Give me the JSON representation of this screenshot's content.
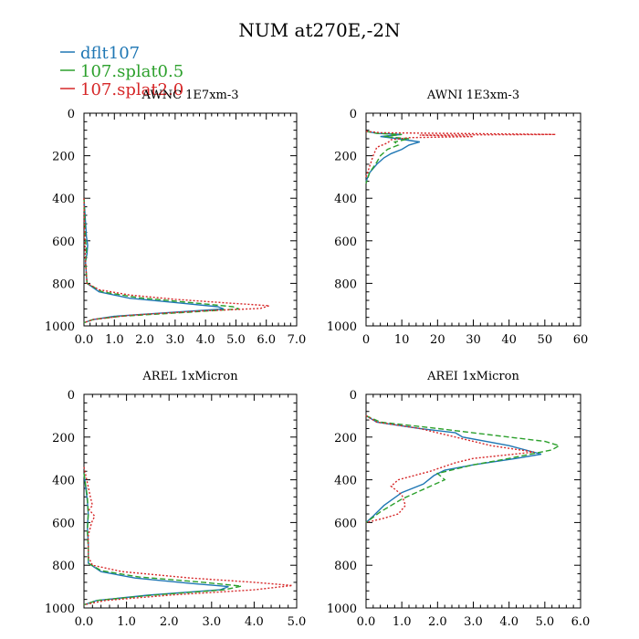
{
  "figure_title": "NUM at270E,-2N",
  "legend": [
    {
      "label": "dflt107",
      "color": "#1f77b4",
      "dash": "solid"
    },
    {
      "label": "107.splat0.5",
      "color": "#2ca02c",
      "dash": "dashed"
    },
    {
      "label": "107.splat2.0",
      "color": "#d62728",
      "dash": "dotted"
    }
  ],
  "chart_data": [
    {
      "type": "line",
      "title": "AWNC  1E7xm-3",
      "xlim": [
        0,
        7
      ],
      "ylim": [
        1000,
        0
      ],
      "xticks": [
        "0.0",
        "1.0",
        "2.0",
        "3.0",
        "4.0",
        "5.0",
        "6.0",
        "7.0"
      ],
      "yticks": [
        "0",
        "200",
        "400",
        "600",
        "800",
        "1000"
      ],
      "series": [
        {
          "name": "dflt107",
          "points": [
            [
              0,
              400
            ],
            [
              0.08,
              580
            ],
            [
              0.12,
              620
            ],
            [
              0.1,
              660
            ],
            [
              0.05,
              700
            ],
            [
              0.1,
              800
            ],
            [
              0.5,
              840
            ],
            [
              1.5,
              870
            ],
            [
              3.0,
              890
            ],
            [
              4.4,
              910
            ],
            [
              4.6,
              920
            ],
            [
              3.0,
              935
            ],
            [
              1.0,
              955
            ],
            [
              0.3,
              970
            ],
            [
              0,
              985
            ]
          ]
        },
        {
          "name": "107.splat0.5",
          "points": [
            [
              0,
              400
            ],
            [
              0.05,
              600
            ],
            [
              0.08,
              640
            ],
            [
              0.05,
              700
            ],
            [
              0.1,
              800
            ],
            [
              0.6,
              840
            ],
            [
              1.8,
              868
            ],
            [
              3.5,
              890
            ],
            [
              4.9,
              910
            ],
            [
              5.1,
              920
            ],
            [
              3.5,
              935
            ],
            [
              1.2,
              955
            ],
            [
              0.3,
              970
            ],
            [
              0,
              985
            ]
          ]
        },
        {
          "name": "107.splat2.0",
          "points": [
            [
              0,
              400
            ],
            [
              0.03,
              600
            ],
            [
              0.05,
              700
            ],
            [
              0.1,
              800
            ],
            [
              0.5,
              830
            ],
            [
              1.5,
              855
            ],
            [
              3.0,
              875
            ],
            [
              4.5,
              890
            ],
            [
              6.1,
              905
            ],
            [
              5.8,
              918
            ],
            [
              3.8,
              930
            ],
            [
              1.5,
              950
            ],
            [
              0.3,
              970
            ],
            [
              0,
              985
            ]
          ]
        }
      ]
    },
    {
      "type": "line",
      "title": "AWNI  1E3xm-3",
      "xlim": [
        0,
        60
      ],
      "ylim": [
        1000,
        0
      ],
      "xticks": [
        "0",
        "10",
        "20",
        "30",
        "40",
        "50",
        "60"
      ],
      "yticks": [
        "0",
        "200",
        "400",
        "600",
        "800",
        "1000"
      ],
      "series": [
        {
          "name": "dflt107",
          "points": [
            [
              0,
              85
            ],
            [
              3,
              95
            ],
            [
              10,
              100
            ],
            [
              4,
              110
            ],
            [
              9,
              120
            ],
            [
              15,
              135
            ],
            [
              12,
              150
            ],
            [
              10,
              170
            ],
            [
              7,
              190
            ],
            [
              5,
              210
            ],
            [
              3,
              240
            ],
            [
              1,
              280
            ],
            [
              0,
              320
            ]
          ]
        },
        {
          "name": "107.splat0.5",
          "points": [
            [
              0,
              85
            ],
            [
              3,
              95
            ],
            [
              10,
              100
            ],
            [
              5,
              110
            ],
            [
              12,
              120
            ],
            [
              8,
              135
            ],
            [
              9,
              150
            ],
            [
              6,
              170
            ],
            [
              4,
              200
            ],
            [
              3,
              230
            ],
            [
              1,
              280
            ],
            [
              0,
              330
            ]
          ]
        },
        {
          "name": "107.splat2.0",
          "points": [
            [
              0,
              85
            ],
            [
              4,
              92
            ],
            [
              53,
              100
            ],
            [
              15,
              103
            ],
            [
              30,
              110
            ],
            [
              12,
              115
            ],
            [
              7,
              125
            ],
            [
              6,
              140
            ],
            [
              3,
              160
            ],
            [
              2,
              200
            ],
            [
              1,
              250
            ],
            [
              0,
              300
            ]
          ]
        }
      ]
    },
    {
      "type": "line",
      "title": "AREL  1xMicron",
      "xlim": [
        0,
        5
      ],
      "ylim": [
        1000,
        0
      ],
      "xticks": [
        "0.0",
        "1.0",
        "2.0",
        "3.0",
        "4.0",
        "5.0"
      ],
      "yticks": [
        "0",
        "200",
        "400",
        "600",
        "800",
        "1000"
      ],
      "series": [
        {
          "name": "dflt107",
          "points": [
            [
              0,
              370
            ],
            [
              0.05,
              450
            ],
            [
              0.08,
              500
            ],
            [
              0.1,
              560
            ],
            [
              0.08,
              620
            ],
            [
              0.1,
              700
            ],
            [
              0.1,
              790
            ],
            [
              0.4,
              830
            ],
            [
              1.2,
              860
            ],
            [
              2.5,
              885
            ],
            [
              3.4,
              900
            ],
            [
              3.2,
              915
            ],
            [
              1.5,
              940
            ],
            [
              0.3,
              965
            ],
            [
              0,
              985
            ]
          ]
        },
        {
          "name": "107.splat0.5",
          "points": [
            [
              0,
              370
            ],
            [
              0.08,
              480
            ],
            [
              0.1,
              560
            ],
            [
              0.08,
              640
            ],
            [
              0.1,
              720
            ],
            [
              0.1,
              790
            ],
            [
              0.4,
              825
            ],
            [
              1.3,
              855
            ],
            [
              2.8,
              880
            ],
            [
              3.7,
              898
            ],
            [
              3.3,
              915
            ],
            [
              1.6,
              940
            ],
            [
              0.3,
              965
            ],
            [
              0,
              985
            ]
          ]
        },
        {
          "name": "107.splat2.0",
          "points": [
            [
              0,
              340
            ],
            [
              0.15,
              480
            ],
            [
              0.2,
              520
            ],
            [
              0.12,
              540
            ],
            [
              0.25,
              570
            ],
            [
              0.18,
              600
            ],
            [
              0.1,
              660
            ],
            [
              0.1,
              760
            ],
            [
              0.2,
              800
            ],
            [
              0.9,
              830
            ],
            [
              2.5,
              860
            ],
            [
              4.0,
              880
            ],
            [
              4.9,
              895
            ],
            [
              4.0,
              915
            ],
            [
              2.0,
              940
            ],
            [
              0.5,
              965
            ],
            [
              0,
              985
            ]
          ]
        }
      ]
    },
    {
      "type": "line",
      "title": "AREI  1xMicron",
      "xlim": [
        0,
        6
      ],
      "ylim": [
        1000,
        0
      ],
      "xticks": [
        "0.0",
        "1.0",
        "2.0",
        "3.0",
        "4.0",
        "5.0",
        "6.0"
      ],
      "yticks": [
        "0",
        "200",
        "400",
        "600",
        "800",
        "1000"
      ],
      "series": [
        {
          "name": "dflt107",
          "points": [
            [
              0,
              100
            ],
            [
              0.3,
              130
            ],
            [
              1.5,
              160
            ],
            [
              2.5,
              180
            ],
            [
              2.7,
              200
            ],
            [
              4.0,
              240
            ],
            [
              4.9,
              280
            ],
            [
              4.2,
              300
            ],
            [
              3.0,
              330
            ],
            [
              2.2,
              355
            ],
            [
              1.9,
              380
            ],
            [
              1.6,
              420
            ],
            [
              1.0,
              460
            ],
            [
              0.5,
              520
            ],
            [
              0.2,
              570
            ],
            [
              0,
              600
            ]
          ]
        },
        {
          "name": "107.splat0.5",
          "points": [
            [
              0,
              100
            ],
            [
              0.4,
              130
            ],
            [
              2.0,
              160
            ],
            [
              3.5,
              190
            ],
            [
              5.0,
              220
            ],
            [
              5.4,
              240
            ],
            [
              5.2,
              260
            ],
            [
              4.0,
              300
            ],
            [
              3.0,
              330
            ],
            [
              2.0,
              370
            ],
            [
              2.2,
              400
            ],
            [
              1.8,
              430
            ],
            [
              1.0,
              490
            ],
            [
              0.4,
              550
            ],
            [
              0,
              600
            ]
          ]
        },
        {
          "name": "107.splat2.0",
          "points": [
            [
              0,
              100
            ],
            [
              0.3,
              130
            ],
            [
              1.5,
              160
            ],
            [
              2.5,
              200
            ],
            [
              3.5,
              240
            ],
            [
              4.7,
              270
            ],
            [
              3.0,
              300
            ],
            [
              2.5,
              320
            ],
            [
              1.8,
              360
            ],
            [
              0.9,
              400
            ],
            [
              0.7,
              430
            ],
            [
              1.0,
              470
            ],
            [
              1.1,
              520
            ],
            [
              0.9,
              560
            ],
            [
              0.5,
              580
            ],
            [
              0,
              600
            ]
          ]
        }
      ]
    }
  ]
}
